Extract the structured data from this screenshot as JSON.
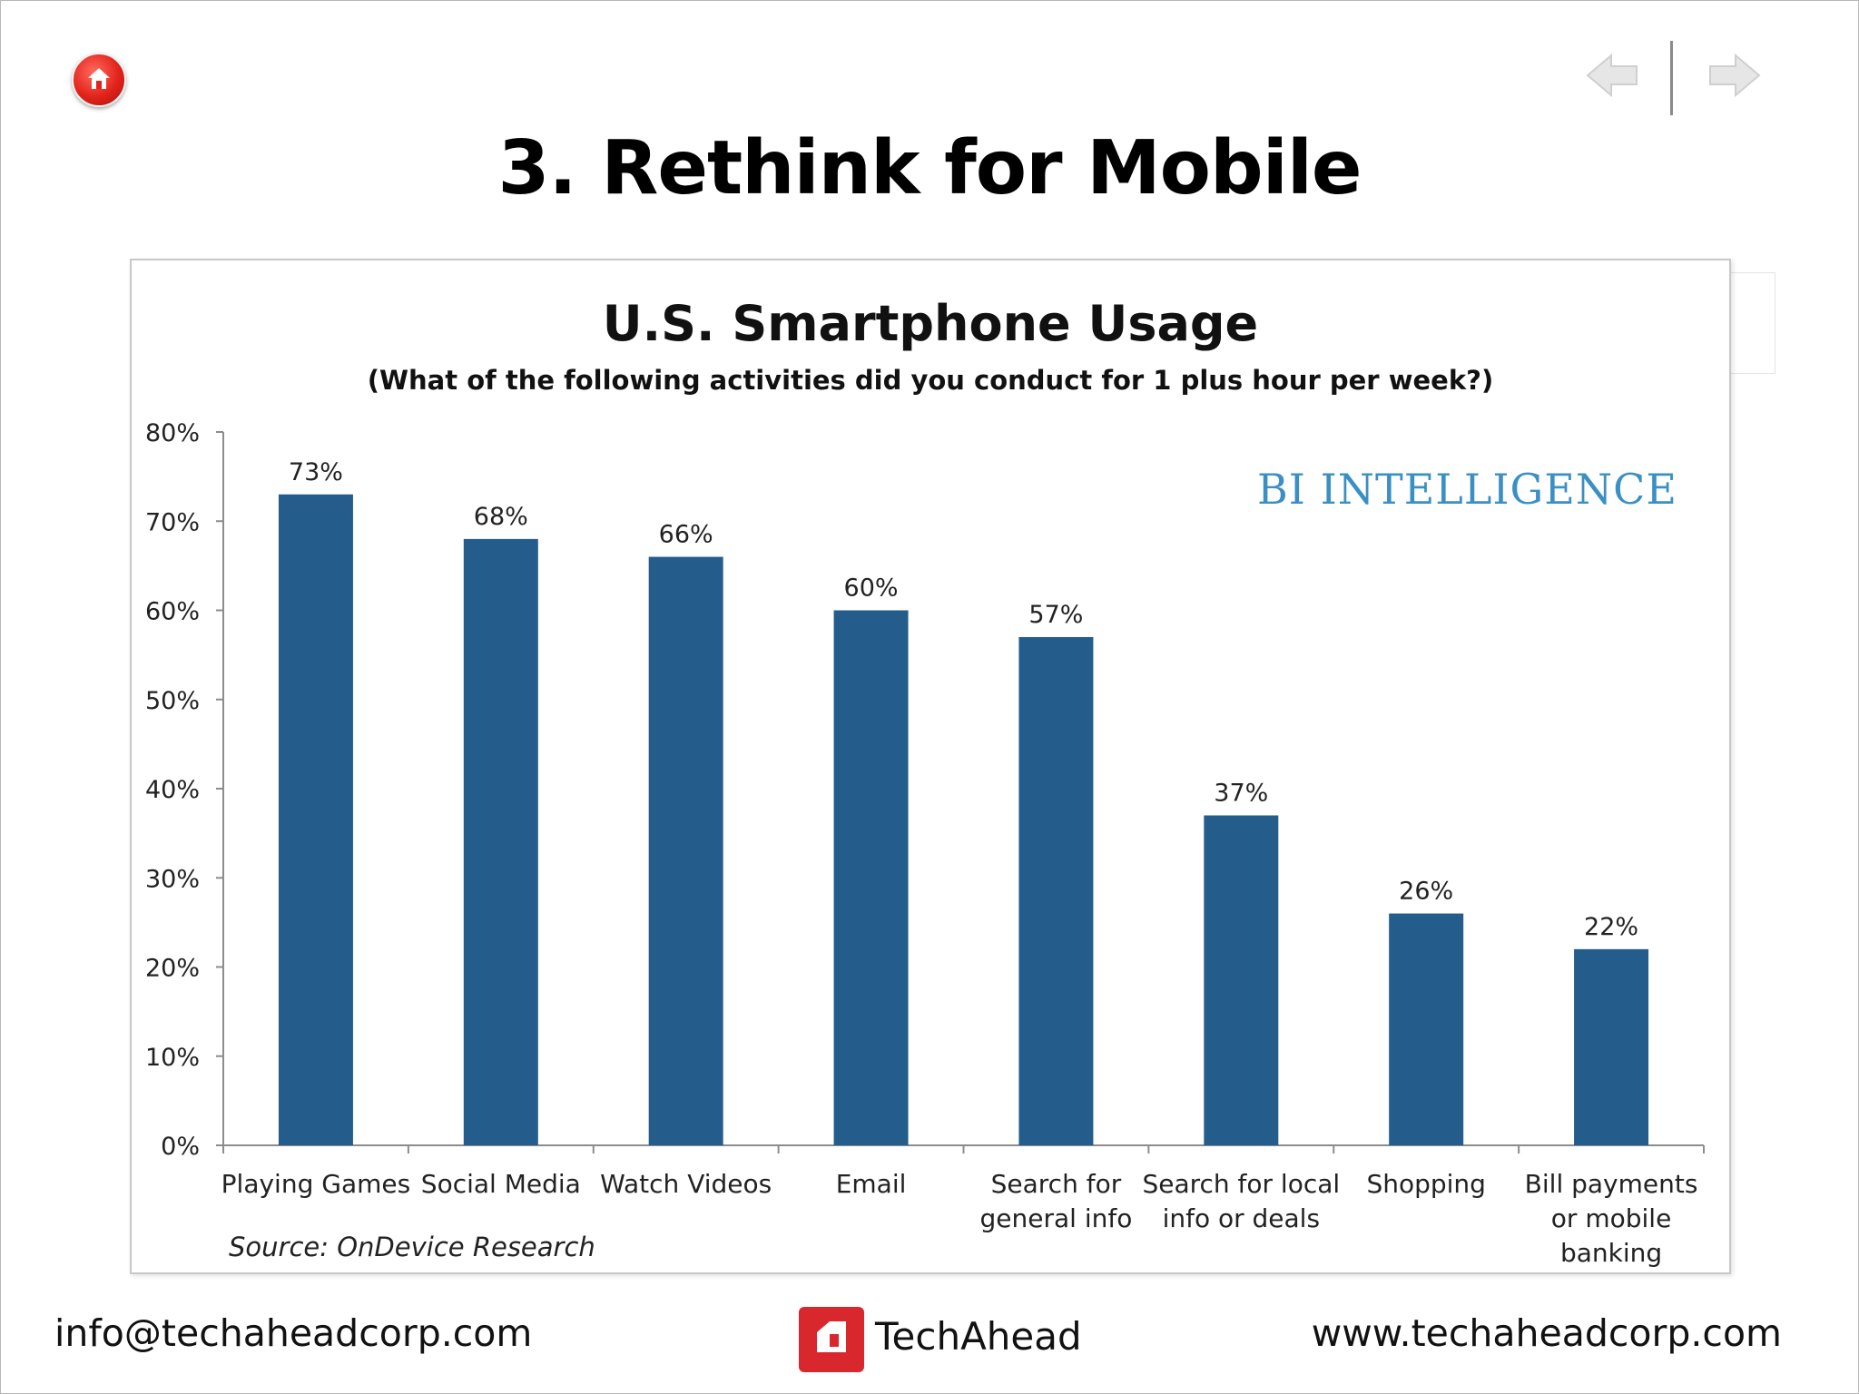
{
  "slide": {
    "title": "3. Rethink for Mobile"
  },
  "nav": {
    "home_icon": "home-icon",
    "prev_icon": "arrow-left-icon",
    "next_icon": "arrow-right-icon"
  },
  "chart": {
    "brand": "BI INTELLIGENCE",
    "source": "Source: OnDevice Research"
  },
  "chart_data": {
    "type": "bar",
    "title": "U.S. Smartphone Usage",
    "subtitle": "(What of the following activities did you conduct for 1 plus hour per week?)",
    "categories": [
      [
        "Playing Games"
      ],
      [
        "Social Media"
      ],
      [
        "Watch Videos"
      ],
      [
        "Email"
      ],
      [
        "Search for",
        "general info"
      ],
      [
        "Search for local",
        "info or deals"
      ],
      [
        "Shopping"
      ],
      [
        "Bill payments",
        "or mobile",
        "banking"
      ]
    ],
    "values": [
      73,
      68,
      66,
      60,
      57,
      37,
      26,
      22
    ],
    "value_labels": [
      "73%",
      "68%",
      "66%",
      "60%",
      "57%",
      "37%",
      "26%",
      "22%"
    ],
    "y_ticks": [
      "0%",
      "10%",
      "20%",
      "30%",
      "40%",
      "50%",
      "60%",
      "70%",
      "80%"
    ],
    "ylim": [
      0,
      80
    ],
    "bar_color": "#245d8c",
    "grid": false,
    "xlabel": "",
    "ylabel": ""
  },
  "footer": {
    "email": "info@techaheadcorp.com",
    "brand": "TechAhead",
    "website": "www.techaheadcorp.com"
  }
}
